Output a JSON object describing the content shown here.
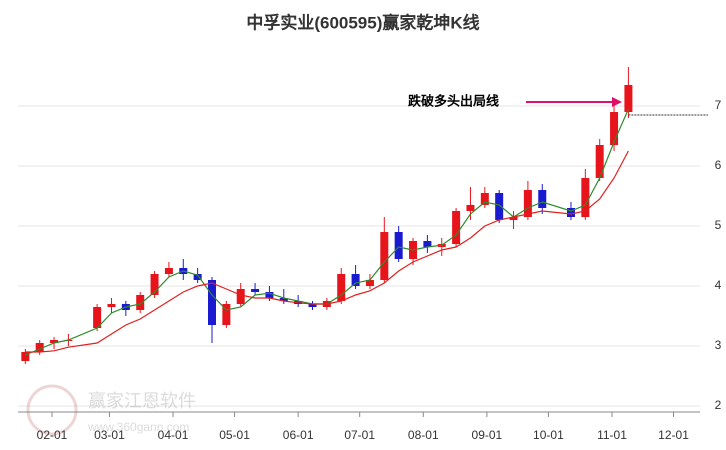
{
  "chart_data": {
    "type": "candlestick",
    "title": "中孚实业(600595)赢家乾坤K线",
    "annotation": "跌破多头出局线",
    "watermark": "赢家江恩软件",
    "watermark_url": "www.360gann.com",
    "x": [
      "01-19",
      "01-26",
      "02-02",
      "02-09",
      "02-23",
      "03-02",
      "03-09",
      "03-16",
      "03-23",
      "03-30",
      "04-06",
      "04-13",
      "04-20",
      "04-27",
      "05-04",
      "05-11",
      "05-18",
      "05-25",
      "06-01",
      "06-08",
      "06-15",
      "06-22",
      "06-29",
      "07-06",
      "07-13",
      "07-20",
      "07-27",
      "08-03",
      "08-10",
      "08-17",
      "08-24",
      "08-31",
      "09-07",
      "09-14",
      "09-21",
      "09-28",
      "10-12",
      "10-19",
      "10-26",
      "11-02",
      "11-09"
    ],
    "open": [
      2.75,
      2.9,
      3.05,
      3.1,
      3.3,
      3.65,
      3.7,
      3.6,
      3.85,
      4.2,
      4.3,
      4.2,
      4.1,
      3.35,
      3.7,
      3.95,
      3.9,
      3.8,
      3.75,
      3.7,
      3.65,
      3.75,
      4.2,
      4.0,
      4.1,
      4.9,
      4.45,
      4.75,
      4.65,
      4.7,
      5.25,
      5.35,
      5.55,
      5.1,
      5.15,
      5.6,
      5.3,
      5.15,
      5.8,
      6.35,
      6.9
    ],
    "high": [
      2.95,
      3.1,
      3.15,
      3.2,
      3.7,
      3.8,
      3.75,
      3.9,
      4.25,
      4.4,
      4.45,
      4.3,
      4.15,
      3.75,
      4.05,
      4.05,
      4.0,
      3.95,
      3.85,
      3.75,
      3.8,
      4.3,
      4.35,
      4.2,
      5.15,
      5.0,
      4.8,
      4.85,
      4.8,
      5.3,
      5.65,
      5.65,
      5.6,
      5.25,
      5.75,
      5.7,
      5.4,
      5.95,
      6.45,
      7.05,
      7.65
    ],
    "low": [
      2.7,
      2.85,
      2.95,
      3.0,
      3.25,
      3.55,
      3.5,
      3.55,
      3.8,
      4.15,
      4.1,
      4.05,
      3.05,
      3.3,
      3.65,
      3.85,
      3.75,
      3.7,
      3.65,
      3.6,
      3.6,
      3.7,
      3.95,
      3.95,
      4.05,
      4.4,
      4.35,
      4.55,
      4.5,
      4.65,
      5.1,
      5.3,
      5.05,
      4.95,
      5.1,
      5.2,
      5.1,
      5.1,
      5.75,
      6.25,
      6.8
    ],
    "close": [
      2.9,
      3.05,
      3.1,
      3.1,
      3.65,
      3.7,
      3.6,
      3.85,
      4.2,
      4.3,
      4.2,
      4.1,
      3.35,
      3.7,
      3.95,
      3.9,
      3.8,
      3.75,
      3.7,
      3.65,
      3.75,
      4.2,
      4.0,
      4.1,
      4.9,
      4.45,
      4.75,
      4.65,
      4.7,
      5.25,
      5.35,
      5.55,
      5.1,
      5.15,
      5.6,
      5.3,
      5.15,
      5.8,
      6.35,
      6.9,
      7.35
    ],
    "up_color": "#e8141c",
    "down_color": "#1a1ad0",
    "series": [
      {
        "color": "#2e8b2e",
        "values": [
          2.85,
          2.95,
          3.05,
          3.1,
          3.3,
          3.55,
          3.65,
          3.7,
          3.9,
          4.15,
          4.25,
          4.18,
          3.85,
          3.6,
          3.65,
          3.85,
          3.88,
          3.8,
          3.75,
          3.7,
          3.7,
          3.85,
          4.05,
          4.1,
          4.4,
          4.65,
          4.6,
          4.65,
          4.68,
          4.85,
          5.2,
          5.4,
          5.35,
          5.15,
          5.3,
          5.4,
          5.25,
          5.35,
          5.8,
          6.4,
          6.95
        ]
      },
      {
        "color": "#e02020",
        "values": [
          2.9,
          2.9,
          2.92,
          2.98,
          3.05,
          3.2,
          3.35,
          3.45,
          3.6,
          3.75,
          3.9,
          4.0,
          4.05,
          3.95,
          3.85,
          3.8,
          3.8,
          3.75,
          3.72,
          3.7,
          3.7,
          3.75,
          3.85,
          3.92,
          4.05,
          4.25,
          4.4,
          4.5,
          4.6,
          4.65,
          4.8,
          5.0,
          5.1,
          5.15,
          5.2,
          5.25,
          5.2,
          5.25,
          5.45,
          5.8,
          6.25
        ]
      }
    ],
    "exit_level": 6.85,
    "ylim": [
      1.9,
      8
    ],
    "yticks": [
      2,
      3,
      4,
      5,
      6,
      7
    ],
    "xticks": [
      "02-01",
      "03-01",
      "04-01",
      "05-01",
      "06-01",
      "07-01",
      "08-01",
      "09-01",
      "10-01",
      "11-01",
      "12-01"
    ],
    "grid": true
  }
}
